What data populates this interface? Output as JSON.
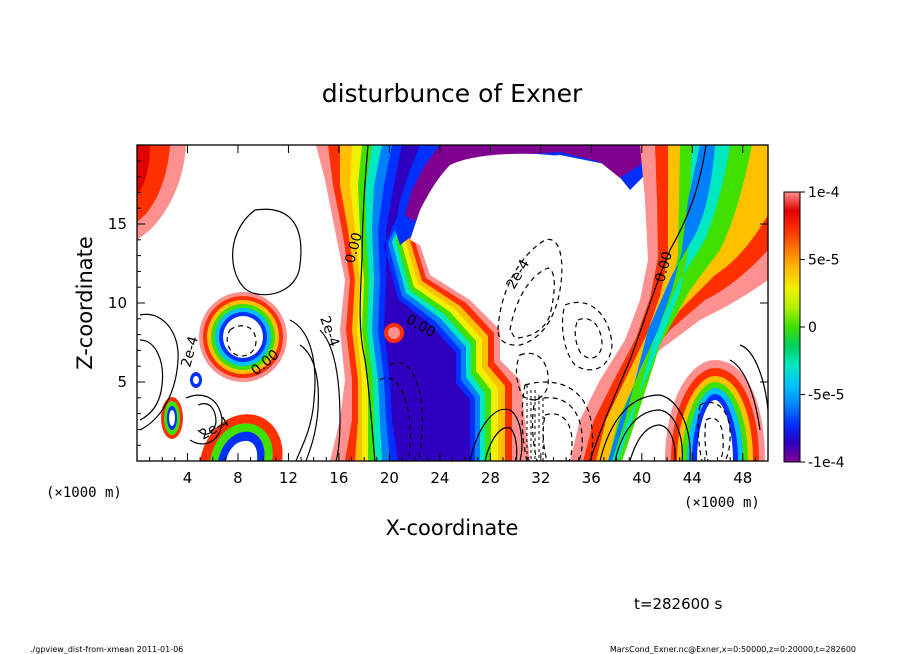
{
  "chart_data": {
    "type": "contour",
    "title": "disturbunce of Exner",
    "xlabel": "X-coordinate",
    "ylabel": "Z-coordinate",
    "x_unit_label": "(×1000 m)",
    "z_unit_label": "(×1000 m)",
    "xlim": [
      0,
      50
    ],
    "ylim": [
      0,
      20
    ],
    "x_ticks": [
      "4",
      "8",
      "12",
      "16",
      "20",
      "24",
      "28",
      "32",
      "36",
      "40",
      "44",
      "48"
    ],
    "y_ticks": [
      "5",
      "10",
      "15"
    ],
    "colorbar": {
      "min": -0.0001,
      "max": 0.0001,
      "tick_labels": [
        "1e-4",
        "5e-5",
        "0",
        "-5e-5",
        "-1e-4"
      ],
      "colors": [
        "#800090",
        "#3000c0",
        "#0030ff",
        "#0080ff",
        "#00c0ff",
        "#00e8c0",
        "#00d060",
        "#40e000",
        "#b0f000",
        "#f0f000",
        "#ffc000",
        "#ff8000",
        "#ff3000",
        "#e00000",
        "#ff9090"
      ]
    },
    "contour_labels": [
      "0.00",
      "0.00",
      "0.00",
      "0.00",
      "2e-4",
      "2e-4",
      "2e-4",
      "2e-4"
    ],
    "time_label": "t=282600 s"
  },
  "footer": {
    "left": "./gpview_dist-from-xmean  2011-01-06",
    "right": "MarsCond_Exner.nc@Exner,x=0:50000,z=0:20000,t=282600"
  }
}
